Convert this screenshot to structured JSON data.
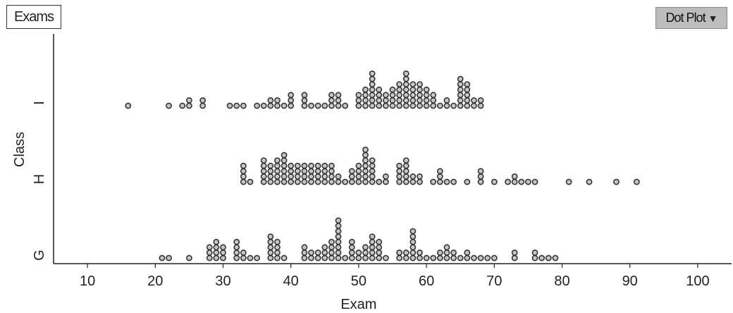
{
  "header": {
    "variable_box": "Exams",
    "plot_menu": "Dot Plot",
    "plot_menu_icon": "triangle-down-icon"
  },
  "chart_data": {
    "type": "dot",
    "xlabel": "Exam",
    "ylabel": "Class",
    "xlim": [
      5,
      105
    ],
    "xticks": [
      10,
      20,
      30,
      40,
      50,
      60,
      70,
      80,
      90,
      100
    ],
    "dot_color": "#c7c7c7",
    "dot_stroke": "#333333",
    "groups": [
      {
        "label": "I",
        "counts": {
          "16": 1,
          "22": 1,
          "24": 1,
          "25": 2,
          "27": 2,
          "31": 1,
          "32": 1,
          "33": 1,
          "35": 1,
          "36": 1,
          "37": 2,
          "38": 2,
          "39": 1,
          "40": 3,
          "42": 3,
          "43": 1,
          "44": 1,
          "45": 1,
          "46": 3,
          "47": 3,
          "48": 1,
          "50": 3,
          "51": 4,
          "52": 7,
          "53": 4,
          "54": 3,
          "55": 4,
          "56": 5,
          "57": 7,
          "58": 5,
          "59": 5,
          "60": 4,
          "61": 3,
          "62": 1,
          "63": 2,
          "64": 1,
          "65": 6,
          "66": 5,
          "67": 2,
          "68": 2
        }
      },
      {
        "label": "H",
        "counts": {
          "33": 4,
          "34": 1,
          "36": 5,
          "37": 4,
          "38": 5,
          "39": 6,
          "40": 4,
          "41": 4,
          "42": 4,
          "43": 4,
          "44": 4,
          "45": 4,
          "46": 4,
          "47": 2,
          "48": 1,
          "49": 3,
          "50": 4,
          "51": 7,
          "52": 5,
          "53": 1,
          "54": 2,
          "56": 4,
          "57": 5,
          "58": 2,
          "59": 2,
          "61": 1,
          "62": 3,
          "63": 1,
          "64": 1,
          "66": 1,
          "68": 3,
          "70": 1,
          "72": 1,
          "73": 2,
          "74": 1,
          "75": 1,
          "76": 1,
          "81": 1,
          "84": 1,
          "88": 1,
          "91": 1
        }
      },
      {
        "label": "G",
        "counts": {
          "21": 1,
          "22": 1,
          "25": 1,
          "28": 3,
          "29": 4,
          "30": 3,
          "32": 4,
          "33": 2,
          "34": 1,
          "35": 1,
          "37": 5,
          "38": 4,
          "39": 1,
          "42": 3,
          "43": 2,
          "44": 2,
          "45": 3,
          "46": 4,
          "47": 8,
          "48": 1,
          "49": 4,
          "50": 2,
          "51": 3,
          "52": 5,
          "53": 4,
          "54": 1,
          "56": 2,
          "57": 2,
          "58": 6,
          "59": 2,
          "60": 1,
          "61": 1,
          "62": 2,
          "63": 3,
          "64": 2,
          "65": 1,
          "66": 2,
          "67": 1,
          "68": 1,
          "69": 1,
          "70": 1,
          "73": 2,
          "76": 2,
          "77": 1,
          "78": 1,
          "79": 1
        }
      }
    ]
  }
}
